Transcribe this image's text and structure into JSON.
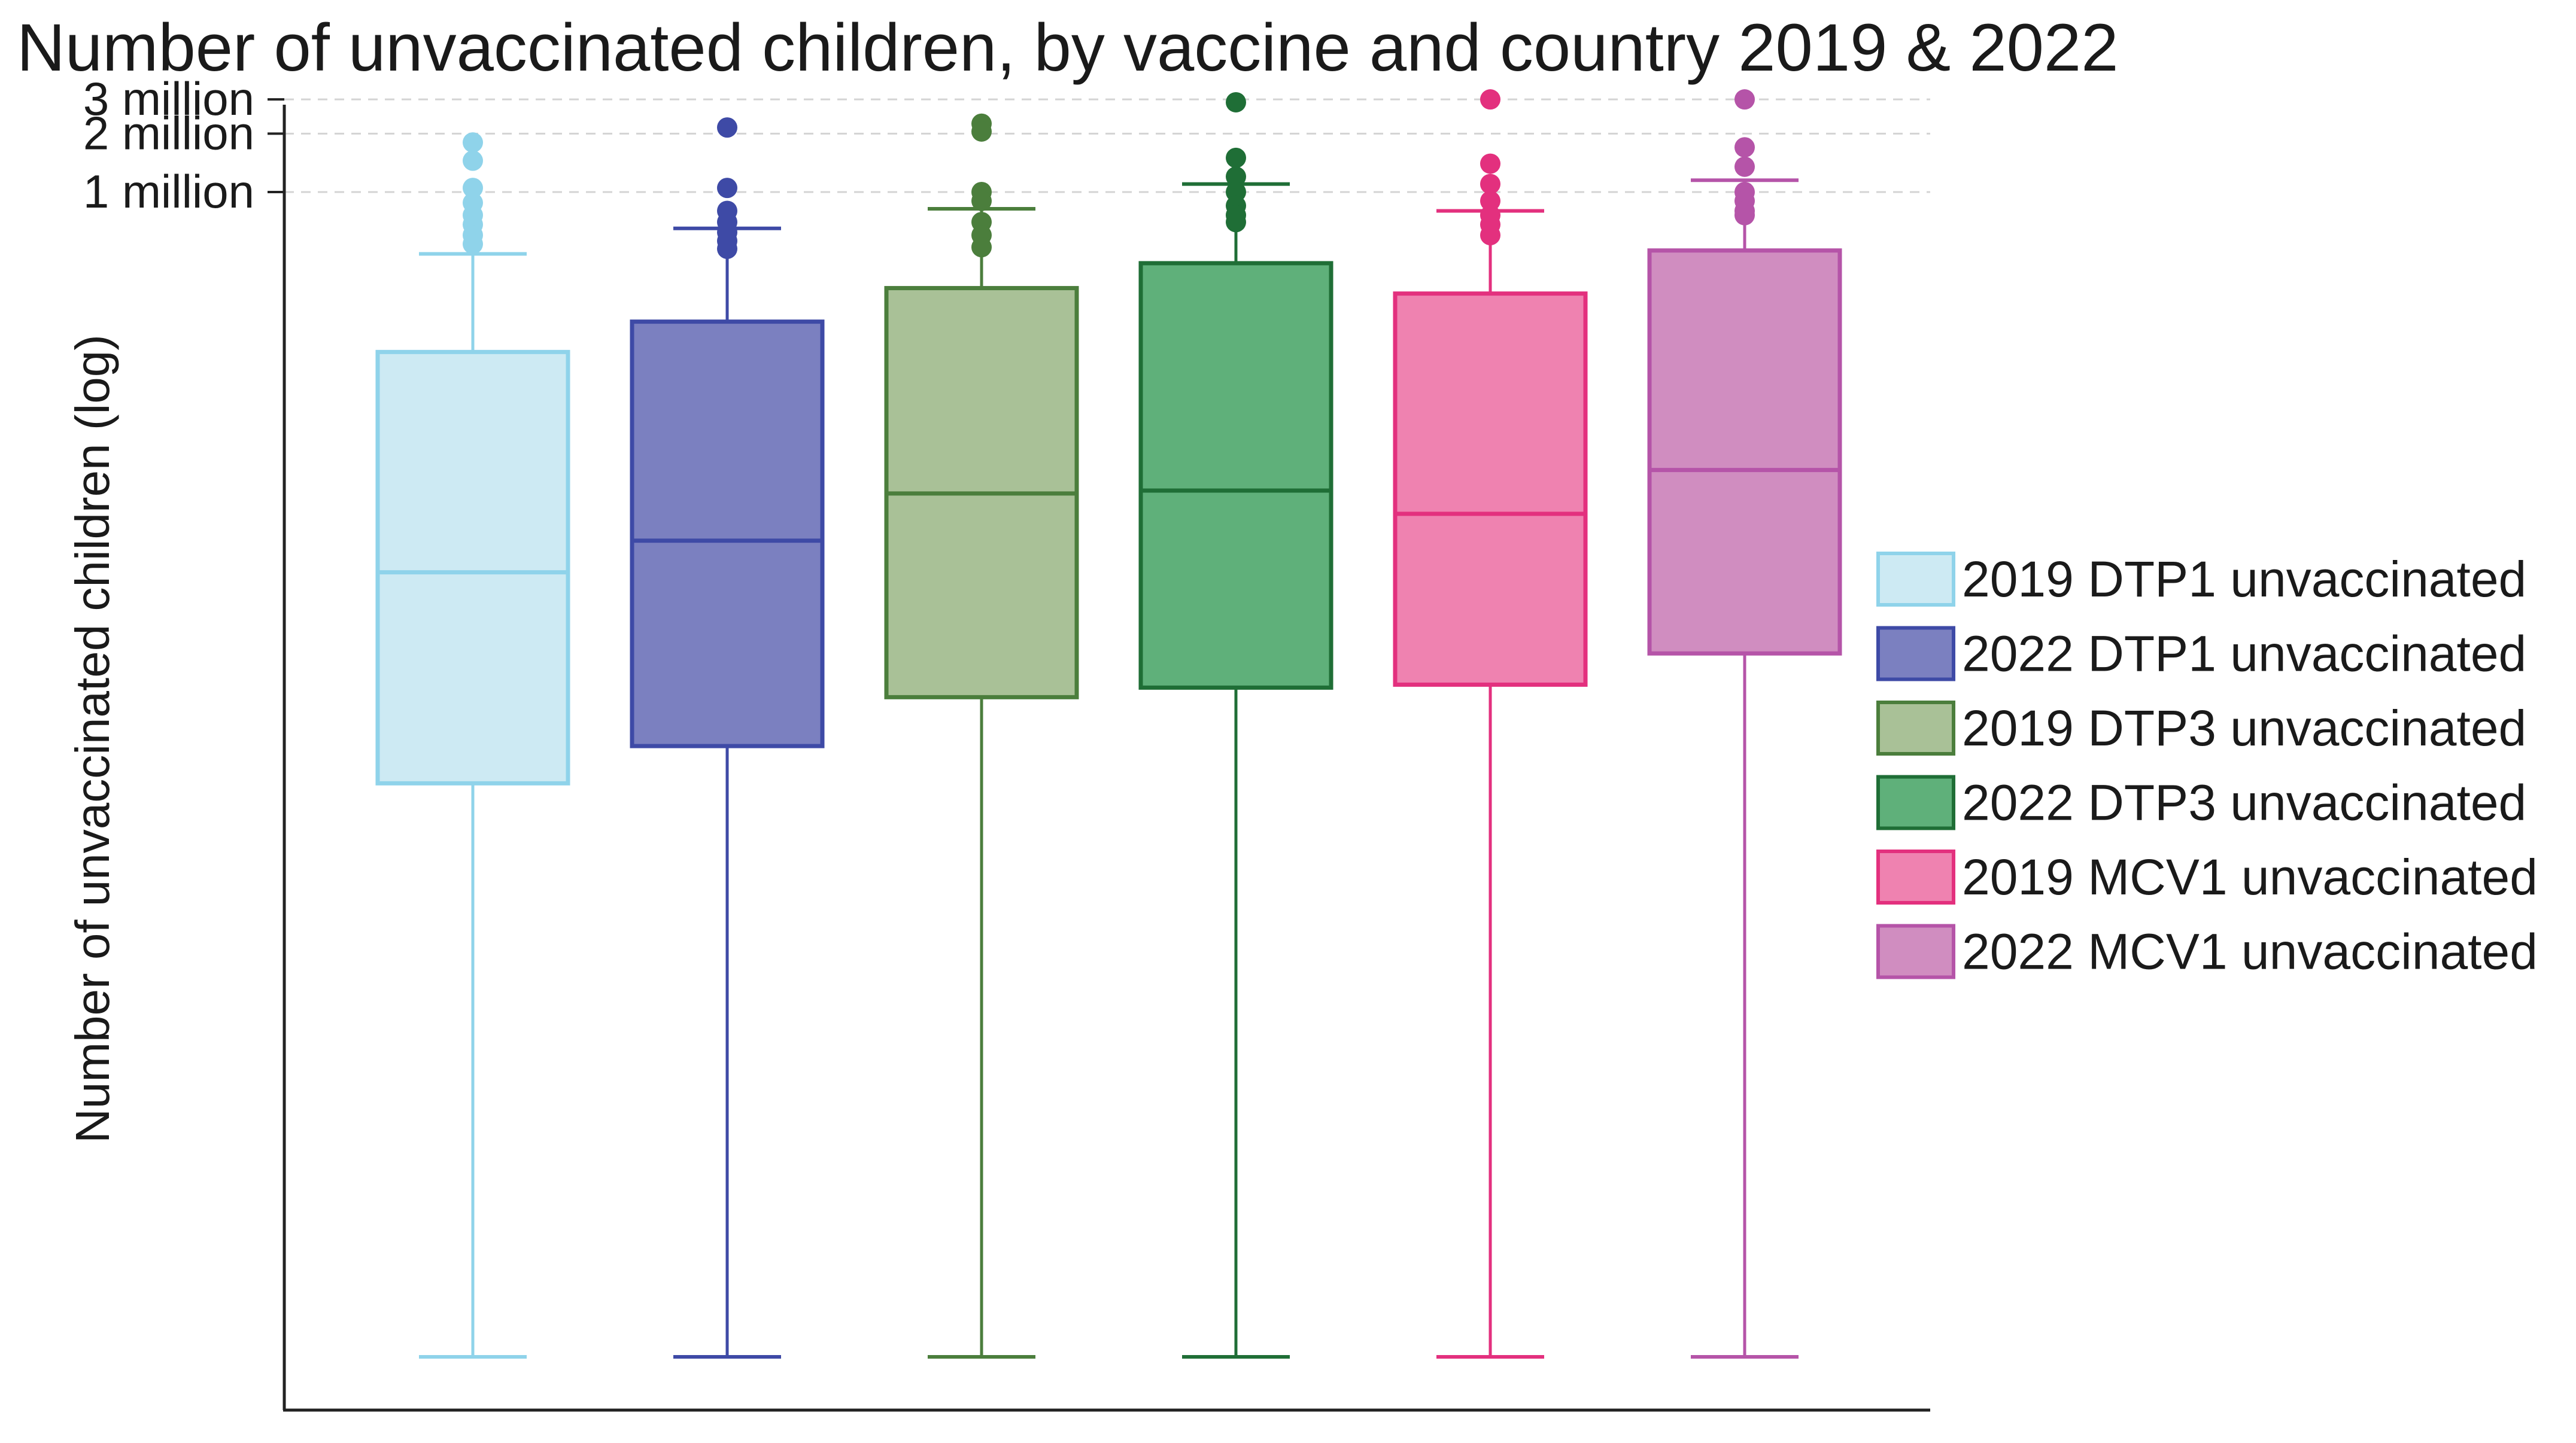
{
  "chart_data": {
    "type": "box",
    "title": "Number of unvaccinated children, by vaccine and country 2019 & 2022",
    "xlabel": "",
    "ylabel": "Number of unvaccinated children (log)",
    "yscale": "log",
    "ylim": [
      1,
      3500000
    ],
    "grid": true,
    "legend_position": "right",
    "y_ticks": [
      {
        "value": 3000000,
        "label": "3 million"
      },
      {
        "value": 2000000,
        "label": "2 million"
      },
      {
        "value": 1000000,
        "label": "1 million"
      }
    ],
    "series": [
      {
        "name": "2019 DTP1 unvaccinated",
        "fill": "#cdeaf3",
        "stroke": "#8fd3ea",
        "min": 1,
        "q1": 900,
        "median": 11000,
        "q3": 150000,
        "max": 480000,
        "outliers": [
          1800000,
          1450000,
          1050000,
          880000,
          760000,
          680000,
          600000,
          540000
        ]
      },
      {
        "name": "2022 DTP1 unvaccinated",
        "fill": "#7b80c0",
        "stroke": "#3e4aa6",
        "min": 1,
        "q1": 1400,
        "median": 16000,
        "q3": 215000,
        "max": 650000,
        "outliers": [
          2150000,
          1050000,
          800000,
          700000,
          620000,
          560000,
          510000
        ]
      },
      {
        "name": "2019 DTP3 unvaccinated",
        "fill": "#a9c197",
        "stroke": "#4b7e3c",
        "min": 1,
        "q1": 2500,
        "median": 28000,
        "q3": 320000,
        "max": 820000,
        "outliers": [
          2250000,
          2050000,
          1000000,
          900000,
          700000,
          600000,
          520000
        ]
      },
      {
        "name": "2022 DTP3 unvaccinated",
        "fill": "#5fb07a",
        "stroke": "#1f6e36",
        "min": 1,
        "q1": 2800,
        "median": 29000,
        "q3": 430000,
        "max": 1100000,
        "outliers": [
          2900000,
          1500000,
          1200000,
          1000000,
          850000,
          760000,
          700000
        ]
      },
      {
        "name": "2019 MCV1 unvaccinated",
        "fill": "#ef82b0",
        "stroke": "#e3307e",
        "min": 1,
        "q1": 2900,
        "median": 22000,
        "q3": 300000,
        "max": 800000,
        "outliers": [
          3000000,
          1400000,
          1100000,
          900000,
          760000,
          680000,
          600000
        ]
      },
      {
        "name": "2022 MCV1 unvaccinated",
        "fill": "#d08dc0",
        "stroke": "#b554a8",
        "min": 1,
        "q1": 4200,
        "median": 37000,
        "q3": 500000,
        "max": 1150000,
        "outliers": [
          3000000,
          1700000,
          1350000,
          1000000,
          900000,
          800000,
          760000
        ]
      }
    ]
  }
}
